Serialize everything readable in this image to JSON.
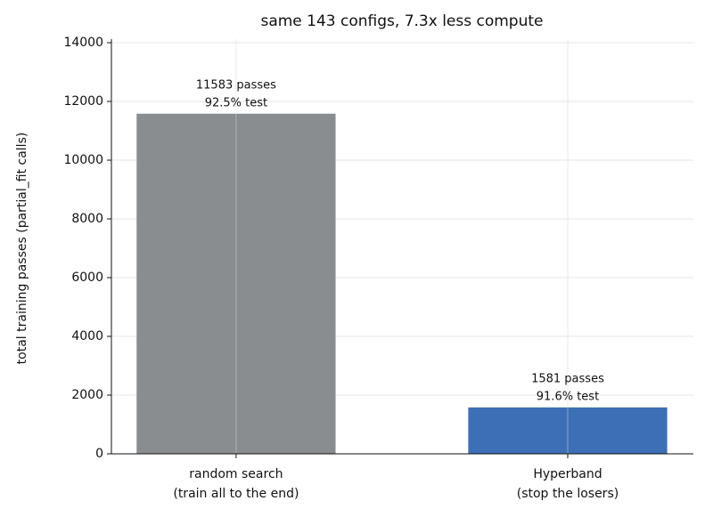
{
  "chart_data": {
    "type": "bar",
    "title": "same 143 configs, 7.3x less compute",
    "y_label": "total training passes (partial_fit calls)",
    "categories": [
      [
        "random search",
        "(train all to the end)"
      ],
      [
        "Hyperband",
        "(stop the losers)"
      ]
    ],
    "values": [
      11583,
      1581
    ],
    "value_labels": [
      "11583 passes",
      "1581 passes"
    ],
    "test_labels": [
      "92.5% test",
      "91.6% test"
    ],
    "colors": [
      "#8a8d90",
      "#3d6fb6"
    ],
    "ylim": [
      0,
      14000
    ],
    "yticks": [
      0,
      2000,
      4000,
      6000,
      8000,
      10000,
      12000,
      14000
    ],
    "grid": true
  }
}
